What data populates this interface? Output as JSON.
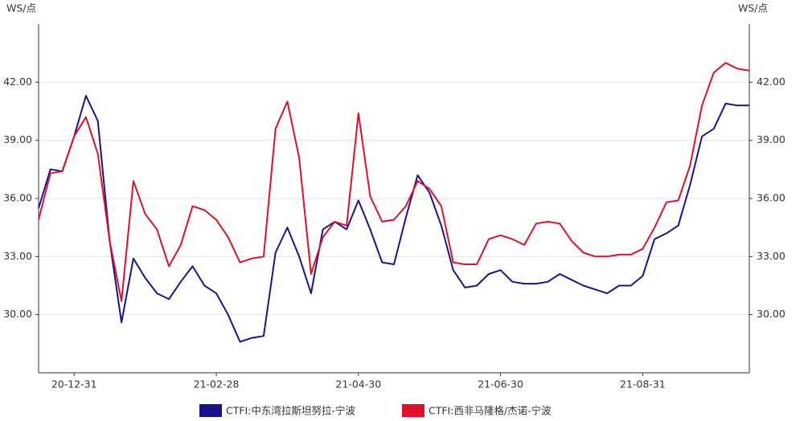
{
  "chart_data": {
    "type": "line",
    "y_label": "WS/点",
    "y2_label": "WS/点",
    "categories": [
      null,
      null,
      null,
      "20-12-31",
      null,
      null,
      null,
      null,
      null,
      null,
      null,
      null,
      null,
      null,
      null,
      "21-02-28",
      null,
      null,
      null,
      null,
      null,
      null,
      null,
      null,
      null,
      null,
      null,
      "21-04-30",
      null,
      null,
      null,
      null,
      null,
      null,
      null,
      null,
      null,
      null,
      null,
      "21-06-30",
      null,
      null,
      null,
      null,
      null,
      null,
      null,
      null,
      null,
      null,
      null,
      "21-08-31",
      null,
      null,
      null,
      null,
      null,
      null,
      null,
      null,
      null
    ],
    "series": [
      {
        "name": "CTFI:中东湾拉斯坦努拉-宁波",
        "color": "#1a148c",
        "values": [
          35.5,
          37.5,
          37.4,
          39.2,
          41.3,
          40.0,
          33.8,
          29.6,
          32.9,
          31.9,
          31.1,
          30.8,
          31.7,
          32.5,
          31.5,
          31.1,
          30.0,
          28.6,
          28.8,
          28.9,
          33.2,
          34.5,
          33.0,
          31.1,
          34.4,
          34.8,
          34.4,
          35.9,
          34.4,
          32.7,
          32.6,
          35.0,
          37.2,
          36.3,
          34.6,
          32.3,
          31.4,
          31.5,
          32.1,
          32.3,
          31.7,
          31.6,
          31.6,
          31.7,
          32.1,
          31.8,
          31.5,
          31.3,
          31.1,
          31.5,
          31.5,
          32.0,
          33.9,
          34.2,
          34.6,
          36.7,
          39.2,
          39.6,
          40.9,
          40.8,
          40.8
        ]
      },
      {
        "name": "CTFI:西非马隆格/杰诺-宁波",
        "color": "#e0102a",
        "values": [
          34.9,
          37.3,
          37.4,
          39.2,
          40.2,
          38.3,
          33.8,
          30.7,
          36.9,
          35.2,
          34.4,
          32.5,
          33.6,
          35.6,
          35.4,
          34.9,
          34.0,
          32.7,
          32.9,
          33.0,
          39.6,
          41.0,
          38.1,
          32.1,
          34.0,
          34.8,
          34.6,
          40.4,
          36.1,
          34.8,
          34.9,
          35.6,
          36.9,
          36.5,
          35.6,
          32.7,
          32.6,
          32.6,
          33.9,
          34.1,
          33.9,
          33.6,
          34.7,
          34.8,
          34.7,
          33.8,
          33.2,
          33.0,
          33.0,
          33.1,
          33.1,
          33.4,
          34.5,
          35.8,
          35.9,
          37.7,
          40.8,
          42.5,
          43.0,
          42.7,
          42.6
        ]
      }
    ],
    "ylim": [
      27,
      45
    ],
    "yticks": [
      {
        "value": 30,
        "label": "30.00"
      },
      {
        "value": 33,
        "label": "33.00"
      },
      {
        "value": 36,
        "label": "36.00"
      },
      {
        "value": 39,
        "label": "39.00"
      },
      {
        "value": 42,
        "label": "42.00"
      }
    ],
    "y2lim": [
      27,
      45
    ],
    "y2ticks": [
      {
        "value": 30,
        "label": "30.00"
      },
      {
        "value": 33,
        "label": "33.00"
      },
      {
        "value": 36,
        "label": "36.00"
      },
      {
        "value": 39,
        "label": "39.00"
      },
      {
        "value": 42,
        "label": "42.00"
      }
    ],
    "grid": true,
    "legend": "bottom"
  }
}
